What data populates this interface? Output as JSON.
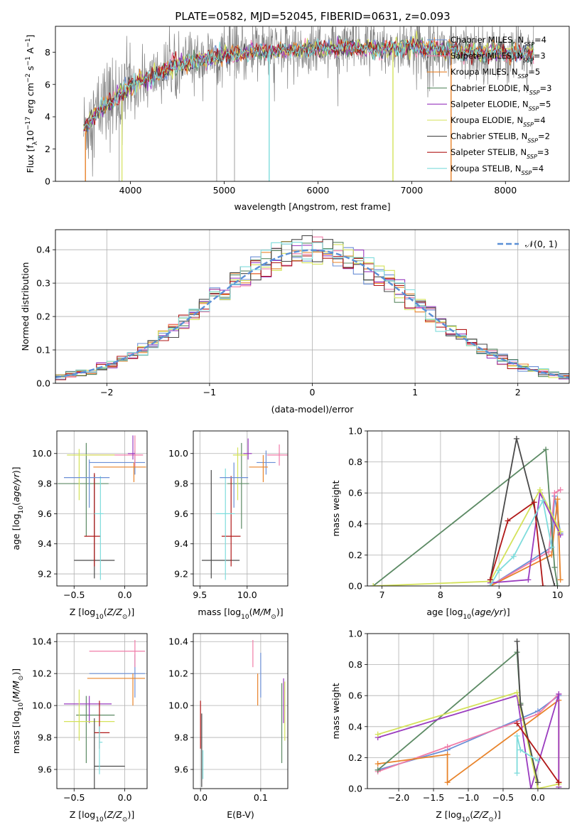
{
  "figure": {
    "title": "PLATE=0582, MJD=52045, FIBERID=0631, z=0.093"
  },
  "colors": {
    "Chabrier MILES": "#6b8fd6",
    "Salpeter MILES": "#f07ca8",
    "Kroupa MILES": "#e8832a",
    "Chabrier ELODIE": "#5c8a64",
    "Salpeter ELODIE": "#9a3bbf",
    "Kroupa ELODIE": "#d4e25a",
    "Chabrier STELIB": "#4a4a4a",
    "Salpeter STELIB": "#b01818",
    "Kroupa STELIB": "#7fdcdc",
    "spectrum_gray": "#808080",
    "normal_curve": "#5a8fd6"
  },
  "chart_data": [
    {
      "id": "spectrum",
      "type": "line",
      "xlabel": "wavelength [Angstrom, rest frame]",
      "ylabel": "Flux [f_λ 10^-17 erg cm^-2 s^-1 A^-1]",
      "xlim": [
        3200,
        8680
      ],
      "ylim": [
        0,
        9.6
      ],
      "xticks": [
        4000,
        5000,
        6000,
        7000,
        8000
      ],
      "yticks": [
        0,
        2,
        4,
        6,
        8
      ],
      "grid": false,
      "legend_position": "right",
      "continuum": {
        "x": [
          3500,
          3600,
          3700,
          3800,
          3900,
          4000,
          4200,
          4500,
          4800,
          5000,
          5300,
          5600,
          6000,
          6300,
          6600,
          7000,
          7300,
          7500,
          7800,
          8000,
          8300
        ],
        "y": [
          3.2,
          4.0,
          4.6,
          5.0,
          5.4,
          5.9,
          6.4,
          7.2,
          7.6,
          7.8,
          8.0,
          8.1,
          8.2,
          8.3,
          8.2,
          8.3,
          8.2,
          8.0,
          8.0,
          8.0,
          7.9
        ]
      },
      "series": [
        {
          "label_name": "Chabrier MILES",
          "label_n": "4"
        },
        {
          "label_name": "Salpeter MILES",
          "label_n": "3"
        },
        {
          "label_name": "Kroupa MILES",
          "label_n": "5"
        },
        {
          "label_name": "Chabrier ELODIE",
          "label_n": "3"
        },
        {
          "label_name": "Salpeter ELODIE",
          "label_n": "5"
        },
        {
          "label_name": "Kroupa ELODIE",
          "label_n": "4"
        },
        {
          "label_name": "Chabrier STELIB",
          "label_n": "2"
        },
        {
          "label_name": "Salpeter STELIB",
          "label_n": "3"
        },
        {
          "label_name": "Kroupa STELIB",
          "label_n": "4"
        }
      ]
    },
    {
      "id": "residuals",
      "type": "step",
      "xlabel": "(data-model)/error",
      "ylabel": "Normed distribution",
      "xlim": [
        -2.5,
        2.5
      ],
      "ylim": [
        0,
        0.46
      ],
      "xticks": [
        -2,
        -1,
        0,
        1,
        2
      ],
      "yticks": [
        0.0,
        0.1,
        0.2,
        0.3,
        0.4
      ],
      "grid": true,
      "legend_position": "top-right",
      "legend_label": "𝒩(0, 1)",
      "bins": 50
    },
    {
      "id": "age_vs_Z",
      "type": "errorbar",
      "xlabel": "Z [log10(Z/Z⊙)]",
      "ylabel": "age  [log10(age/yr)]",
      "xlim": [
        -0.67,
        0.22
      ],
      "ylim": [
        9.12,
        10.15
      ],
      "xticks": [
        -0.5,
        0.0
      ],
      "yticks": [
        9.2,
        9.4,
        9.6,
        9.8,
        10.0
      ],
      "grid": true,
      "points": [
        {
          "model": "Chabrier MILES",
          "x": 0.1,
          "xerr": [
            0.45,
            0.1
          ],
          "y": 9.94,
          "yerr": [
            0.08,
            0.08
          ]
        },
        {
          "model": "Salpeter MILES",
          "x": 0.1,
          "xerr": [
            0.45,
            0.08
          ],
          "y": 9.99,
          "yerr": [
            0.08,
            0.13
          ]
        },
        {
          "model": "Kroupa MILES",
          "x": 0.09,
          "xerr": [
            0.4,
            0.12
          ],
          "y": 9.91,
          "yerr": [
            0.1,
            0.03
          ]
        },
        {
          "model": "Chabrier ELODIE",
          "x": -0.38,
          "xerr": [
            0.28,
            0.22
          ],
          "y": 9.8,
          "yerr": [
            0.35,
            0.27
          ]
        },
        {
          "model": "Salpeter ELODIE",
          "x": 0.08,
          "xerr": [
            0.05,
            0.02
          ],
          "y": 10.0,
          "yerr": [
            0.04,
            0.12
          ]
        },
        {
          "model": "Kroupa ELODIE",
          "x": -0.45,
          "xerr": [
            0.12,
            0.35
          ],
          "y": 9.99,
          "yerr": [
            0.3,
            0.04
          ]
        },
        {
          "model": "Chabrier STELIB",
          "x": -0.3,
          "xerr": [
            0.2,
            0.2
          ],
          "y": 9.29,
          "yerr": [
            0.12,
            0.57
          ]
        },
        {
          "model": "Salpeter STELIB",
          "x": -0.3,
          "xerr": [
            0.1,
            0.06
          ],
          "y": 9.45,
          "yerr": [
            0.2,
            0.42
          ]
        },
        {
          "model": "Kroupa STELIB",
          "x": -0.24,
          "xerr": [
            0.06,
            0.03
          ],
          "y": 9.6,
          "yerr": [
            0.44,
            0.25
          ]
        },
        {
          "model": "Chabrier MILES",
          "x": -0.35,
          "xerr": [
            0.25,
            0.2
          ],
          "y": 9.84,
          "yerr": [
            0.2,
            0.12
          ]
        }
      ]
    },
    {
      "id": "age_vs_mass",
      "type": "errorbar",
      "xlabel": "mass [log10(M/M⊙)]",
      "ylabel": "",
      "xlim": [
        9.43,
        10.43
      ],
      "ylim": [
        9.12,
        10.15
      ],
      "xticks": [
        9.5,
        10.0
      ],
      "yticks": [
        9.2,
        9.4,
        9.6,
        9.8,
        10.0
      ],
      "grid": true,
      "points": [
        {
          "model": "Chabrier MILES",
          "x": 10.2,
          "xerr": [
            0.1,
            0.1
          ],
          "y": 9.94,
          "yerr": [
            0.08,
            0.08
          ]
        },
        {
          "model": "Salpeter MILES",
          "x": 10.34,
          "xerr": [
            0.13,
            0.1
          ],
          "y": 9.99,
          "yerr": [
            0.07,
            0.07
          ]
        },
        {
          "model": "Kroupa MILES",
          "x": 10.17,
          "xerr": [
            0.15,
            0.05
          ],
          "y": 9.91,
          "yerr": [
            0.1,
            0.08
          ]
        },
        {
          "model": "Chabrier ELODIE",
          "x": 9.94,
          "xerr": [
            0.15,
            0.08
          ],
          "y": 9.8,
          "yerr": [
            0.3,
            0.27
          ]
        },
        {
          "model": "Salpeter ELODIE",
          "x": 10.01,
          "xerr": [
            0.05,
            0.04
          ],
          "y": 10.0,
          "yerr": [
            0.04,
            0.1
          ]
        },
        {
          "model": "Kroupa ELODIE",
          "x": 9.9,
          "xerr": [
            0.05,
            0.1
          ],
          "y": 9.99,
          "yerr": [
            0.3,
            0.05
          ]
        },
        {
          "model": "Chabrier STELIB",
          "x": 9.62,
          "xerr": [
            0.1,
            0.3
          ],
          "y": 9.29,
          "yerr": [
            0.12,
            0.6
          ]
        },
        {
          "model": "Salpeter STELIB",
          "x": 9.83,
          "xerr": [
            0.1,
            0.1
          ],
          "y": 9.45,
          "yerr": [
            0.2,
            0.4
          ]
        },
        {
          "model": "Kroupa STELIB",
          "x": 9.77,
          "xerr": [
            0.1,
            0.1
          ],
          "y": 9.6,
          "yerr": [
            0.44,
            0.3
          ]
        },
        {
          "model": "Chabrier MILES",
          "x": 9.86,
          "xerr": [
            0.15,
            0.15
          ],
          "y": 9.84,
          "yerr": [
            0.2,
            0.1
          ]
        }
      ]
    },
    {
      "id": "weight_vs_age",
      "type": "line",
      "xlabel": "age  [log10(age/yr)]",
      "ylabel": "mass weight",
      "xlim": [
        6.75,
        10.2
      ],
      "ylim": [
        0,
        1.0
      ],
      "xticks": [
        7,
        8,
        9,
        10
      ],
      "yticks": [
        0.0,
        0.2,
        0.4,
        0.6,
        0.8,
        1.0
      ],
      "grid": true,
      "series": [
        {
          "model": "Chabrier MILES",
          "x": [
            8.85,
            9.9,
            9.95,
            10.05
          ],
          "y": [
            0.0,
            0.25,
            0.58,
            0.34
          ]
        },
        {
          "model": "Salpeter MILES",
          "x": [
            8.85,
            9.85,
            9.95,
            10.05
          ],
          "y": [
            0.0,
            0.22,
            0.6,
            0.62
          ]
        },
        {
          "model": "Kroupa MILES",
          "x": [
            8.85,
            9.9,
            10.0,
            10.05
          ],
          "y": [
            0.0,
            0.2,
            0.56,
            0.04
          ]
        },
        {
          "model": "Chabrier ELODIE",
          "x": [
            6.85,
            9.8,
            9.95,
            10.0
          ],
          "y": [
            0.0,
            0.88,
            0.12,
            0.0
          ]
        },
        {
          "model": "Salpeter ELODIE",
          "x": [
            8.85,
            9.5,
            9.7,
            10.05
          ],
          "y": [
            0.02,
            0.04,
            0.6,
            0.33
          ]
        },
        {
          "model": "Kroupa ELODIE",
          "x": [
            6.85,
            8.85,
            9.7,
            10.05
          ],
          "y": [
            0.0,
            0.03,
            0.62,
            0.35
          ]
        },
        {
          "model": "Chabrier STELIB",
          "x": [
            8.85,
            9.3,
            9.95
          ],
          "y": [
            0.04,
            0.95,
            0.0
          ]
        },
        {
          "model": "Salpeter STELIB",
          "x": [
            8.85,
            9.15,
            9.6,
            9.75
          ],
          "y": [
            0.04,
            0.42,
            0.54,
            0.0
          ]
        },
        {
          "model": "Kroupa STELIB",
          "x": [
            8.85,
            9.0,
            9.25,
            9.75,
            9.9
          ],
          "y": [
            0.0,
            0.1,
            0.19,
            0.55,
            0.25
          ]
        }
      ]
    },
    {
      "id": "mass_vs_Z",
      "type": "errorbar",
      "xlabel": "Z [log10(Z/Z⊙)]",
      "ylabel": "mass [log10(M/M⊙)]",
      "xlim": [
        -0.67,
        0.22
      ],
      "ylim": [
        9.48,
        10.45
      ],
      "xticks": [
        -0.5,
        0.0
      ],
      "yticks": [
        9.6,
        9.8,
        10.0,
        10.2,
        10.4
      ],
      "grid": true,
      "points": [
        {
          "model": "Chabrier MILES",
          "x": 0.1,
          "xerr": [
            0.45,
            0.1
          ],
          "y": 10.2,
          "yerr": [
            0.15,
            0.12
          ]
        },
        {
          "model": "Salpeter MILES",
          "x": 0.1,
          "xerr": [
            0.45,
            0.1
          ],
          "y": 10.34,
          "yerr": [
            0.1,
            0.07
          ]
        },
        {
          "model": "Kroupa MILES",
          "x": 0.08,
          "xerr": [
            0.45,
            0.12
          ],
          "y": 10.17,
          "yerr": [
            0.17,
            0.03
          ]
        },
        {
          "model": "Chabrier ELODIE",
          "x": -0.38,
          "xerr": [
            0.1,
            0.28
          ],
          "y": 9.94,
          "yerr": [
            0.3,
            0.12
          ]
        },
        {
          "model": "Salpeter ELODIE",
          "x": -0.35,
          "xerr": [
            0.25,
            0.22
          ],
          "y": 10.01,
          "yerr": [
            0.12,
            0.05
          ]
        },
        {
          "model": "Kroupa ELODIE",
          "x": -0.45,
          "xerr": [
            0.15,
            0.35
          ],
          "y": 9.9,
          "yerr": [
            0.12,
            0.2
          ]
        },
        {
          "model": "Chabrier STELIB",
          "x": -0.3,
          "xerr": [
            0.0,
            0.3
          ],
          "y": 9.62,
          "yerr": [
            0.14,
            0.3
          ]
        },
        {
          "model": "Salpeter STELIB",
          "x": -0.25,
          "xerr": [
            0.05,
            0.1
          ],
          "y": 9.83,
          "yerr": [
            0.1,
            0.2
          ]
        },
        {
          "model": "Kroupa STELIB",
          "x": -0.25,
          "xerr": [
            0.0,
            0.03
          ],
          "y": 9.77,
          "yerr": [
            0.2,
            0.1
          ]
        }
      ]
    },
    {
      "id": "mass_vs_EBV",
      "type": "errorbar",
      "xlabel": "E(B-V)",
      "ylabel": "",
      "xlim": [
        -0.012,
        0.145
      ],
      "ylim": [
        9.48,
        10.45
      ],
      "xticks": [
        0.0,
        0.1
      ],
      "yticks": [
        9.6,
        9.8,
        10.0,
        10.2,
        10.4
      ],
      "grid": true,
      "points": [
        {
          "model": "Chabrier MILES",
          "x": 0.1,
          "xerr": [
            0.0,
            0.0
          ],
          "y": 10.2,
          "yerr": [
            0.15,
            0.13
          ]
        },
        {
          "model": "Salpeter MILES",
          "x": 0.087,
          "xerr": [
            0.0,
            0.0
          ],
          "y": 10.34,
          "yerr": [
            0.1,
            0.07
          ]
        },
        {
          "model": "Kroupa MILES",
          "x": 0.095,
          "xerr": [
            0.0,
            0.0
          ],
          "y": 10.17,
          "yerr": [
            0.17,
            0.03
          ]
        },
        {
          "model": "Chabrier ELODIE",
          "x": 0.135,
          "xerr": [
            0.0,
            0.0
          ],
          "y": 9.94,
          "yerr": [
            0.3,
            0.2
          ]
        },
        {
          "model": "Salpeter ELODIE",
          "x": 0.138,
          "xerr": [
            0.0,
            0.0
          ],
          "y": 10.01,
          "yerr": [
            0.12,
            0.16
          ]
        },
        {
          "model": "Kroupa ELODIE",
          "x": 0.14,
          "xerr": [
            0.0,
            0.0
          ],
          "y": 9.9,
          "yerr": [
            0.12,
            0.25
          ]
        },
        {
          "model": "Chabrier STELIB",
          "x": 0.002,
          "xerr": [
            0.0,
            0.0
          ],
          "y": 9.75,
          "yerr": [
            0.26,
            0.2
          ]
        },
        {
          "model": "Salpeter STELIB",
          "x": 0.0,
          "xerr": [
            0.0,
            0.0
          ],
          "y": 9.83,
          "yerr": [
            0.1,
            0.2
          ]
        },
        {
          "model": "Kroupa STELIB",
          "x": 0.004,
          "xerr": [
            0.0,
            0.0
          ],
          "y": 9.62,
          "yerr": [
            0.08,
            0.1
          ]
        }
      ]
    },
    {
      "id": "weight_vs_Z",
      "type": "line",
      "xlabel": "Z [log10(Z/Z⊙)]",
      "ylabel": "mass weight",
      "xlim": [
        -2.45,
        0.45
      ],
      "ylim": [
        0,
        1.0
      ],
      "xticks": [
        -2.0,
        -1.5,
        -1.0,
        -0.5,
        0.0
      ],
      "yticks": [
        0.0,
        0.2,
        0.4,
        0.6,
        0.8,
        1.0
      ],
      "grid": true,
      "series": [
        {
          "model": "Chabrier MILES",
          "x": [
            -2.3,
            -1.3,
            0.0,
            0.3
          ],
          "y": [
            0.12,
            0.25,
            0.5,
            0.6
          ]
        },
        {
          "model": "Salpeter MILES",
          "x": [
            -2.3,
            -1.3,
            0.0,
            0.3
          ],
          "y": [
            0.11,
            0.27,
            0.48,
            0.61
          ]
        },
        {
          "model": "Kroupa MILES",
          "x": [
            -2.3,
            -1.3,
            -1.3,
            0.3,
            0.3
          ],
          "y": [
            0.16,
            0.22,
            0.04,
            0.57,
            0.04
          ]
        },
        {
          "model": "Chabrier ELODIE",
          "x": [
            -2.3,
            -0.3,
            -0.25,
            0.0
          ],
          "y": [
            0.12,
            0.88,
            0.55,
            0.0
          ]
        },
        {
          "model": "Salpeter ELODIE",
          "x": [
            -2.3,
            -0.3,
            -0.1,
            0.3,
            0.3
          ],
          "y": [
            0.33,
            0.6,
            0.0,
            0.61,
            0.01
          ]
        },
        {
          "model": "Kroupa ELODIE",
          "x": [
            -2.3,
            -0.3,
            0.0,
            0.3
          ],
          "y": [
            0.35,
            0.62,
            0.0,
            0.03
          ]
        },
        {
          "model": "Chabrier STELIB",
          "x": [
            -0.3,
            -0.25,
            0.0
          ],
          "y": [
            0.95,
            0.54,
            0.04
          ]
        },
        {
          "model": "Salpeter STELIB",
          "x": [
            -0.3,
            0.3,
            0.3
          ],
          "y": [
            0.42,
            0.04,
            0.04
          ]
        },
        {
          "model": "Kroupa STELIB",
          "x": [
            -0.3,
            -0.3,
            -0.25,
            0.0
          ],
          "y": [
            0.1,
            0.34,
            0.25,
            0.18
          ]
        }
      ]
    }
  ]
}
